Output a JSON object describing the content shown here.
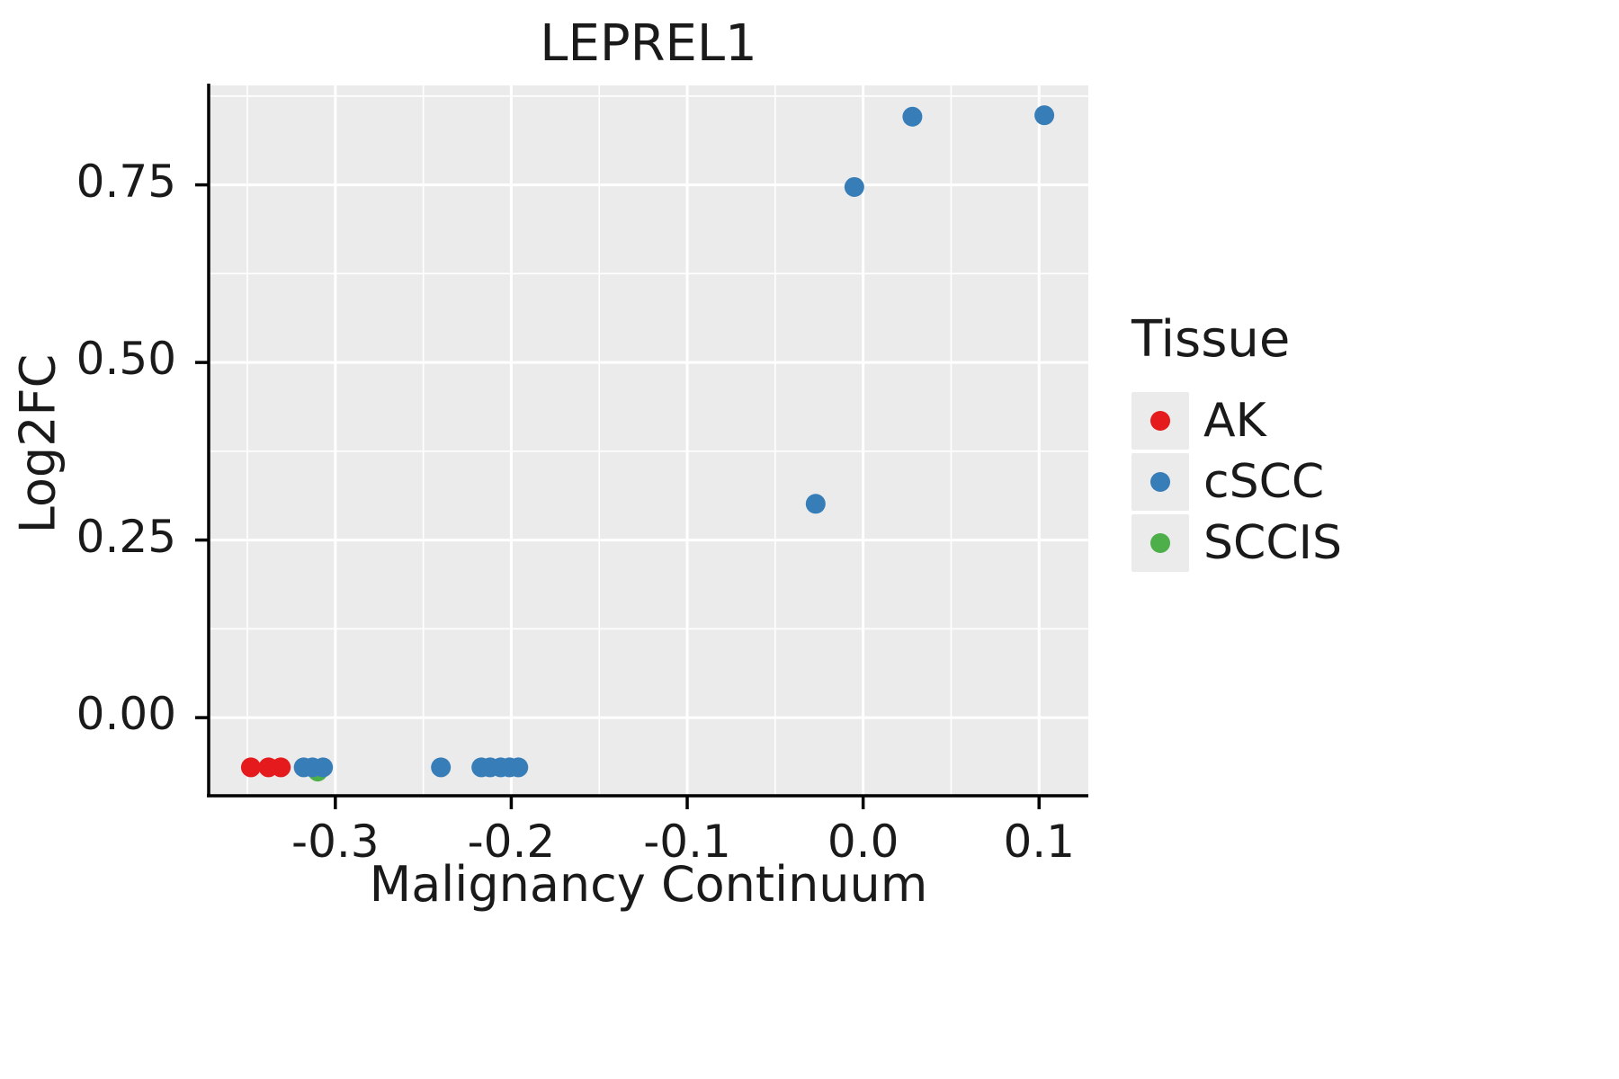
{
  "chart_data": {
    "type": "scatter",
    "title": "LEPREL1",
    "xlabel": "Malignancy Continuum",
    "ylabel": "Log2FC",
    "xlim": [
      -0.372,
      0.128
    ],
    "ylim": [
      -0.11,
      0.89
    ],
    "x_ticks": [
      -0.3,
      -0.2,
      -0.1,
      0.0,
      0.1
    ],
    "x_tick_labels": [
      "-0.3",
      "-0.2",
      "-0.1",
      "0.0",
      "0.1"
    ],
    "y_ticks": [
      0.0,
      0.25,
      0.5,
      0.75
    ],
    "y_tick_labels": [
      "0.00",
      "0.25",
      "0.50",
      "0.75"
    ],
    "grid": true,
    "panel_bg": "#EBEBEB",
    "grid_color": "#FFFFFF",
    "point_radius": 11,
    "legend": {
      "title": "Tissue",
      "position": "right",
      "key_bg": "#EBEBEB"
    },
    "draw_order": [
      "AK",
      "SCCIS",
      "cSCC"
    ],
    "series": [
      {
        "name": "AK",
        "color": "#E41A1C",
        "points": [
          [
            -0.348,
            -0.07
          ],
          [
            -0.338,
            -0.07
          ],
          [
            -0.331,
            -0.07
          ]
        ]
      },
      {
        "name": "cSCC",
        "color": "#377EB8",
        "points": [
          [
            -0.318,
            -0.07
          ],
          [
            -0.313,
            -0.07
          ],
          [
            -0.307,
            -0.07
          ],
          [
            -0.24,
            -0.07
          ],
          [
            -0.217,
            -0.07
          ],
          [
            -0.212,
            -0.07
          ],
          [
            -0.206,
            -0.07
          ],
          [
            -0.201,
            -0.07
          ],
          [
            -0.196,
            -0.07
          ],
          [
            -0.027,
            0.301
          ],
          [
            -0.005,
            0.747
          ],
          [
            0.028,
            0.846
          ],
          [
            0.103,
            0.848
          ]
        ]
      },
      {
        "name": "SCCIS",
        "color": "#4DAF4A",
        "points": [
          [
            -0.31,
            -0.076
          ]
        ]
      }
    ]
  }
}
